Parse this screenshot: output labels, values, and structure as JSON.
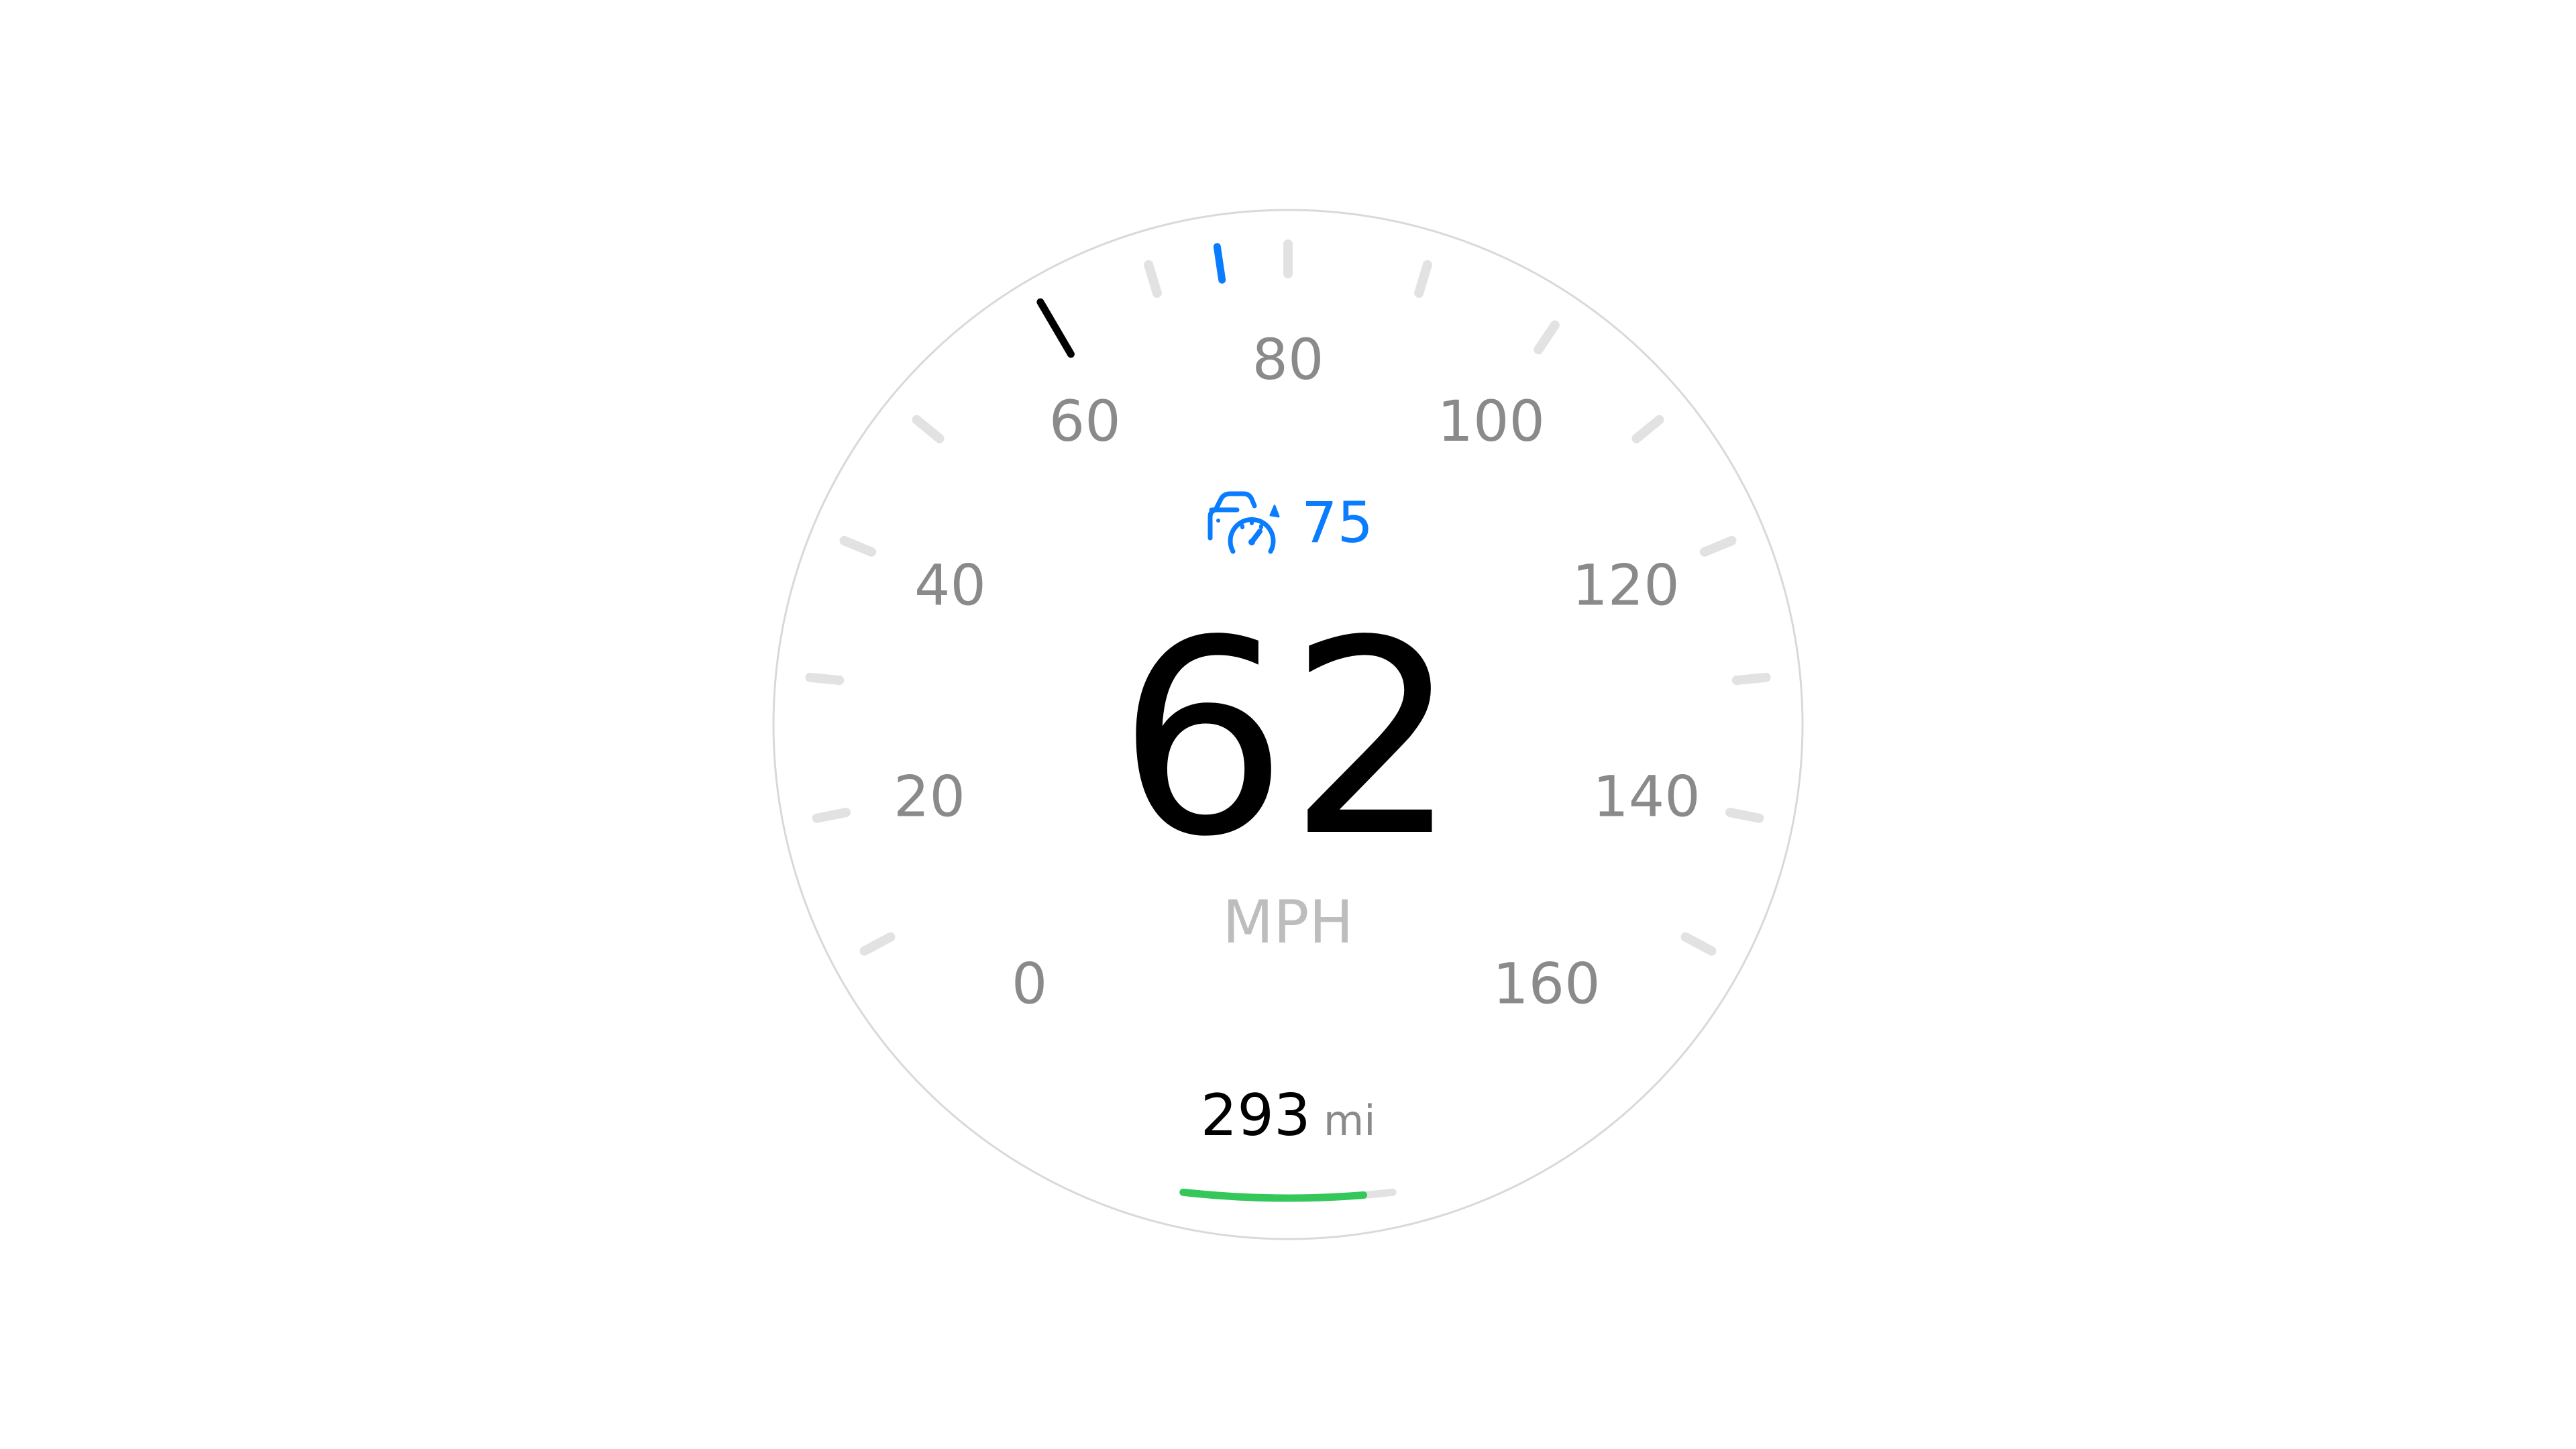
{
  "speedometer": {
    "speed": "62",
    "unit": "MPH",
    "min_speed": 0,
    "max_speed": 160,
    "scale_labels": [
      "0",
      "20",
      "40",
      "60",
      "80",
      "100",
      "120",
      "140",
      "160"
    ],
    "cruise": {
      "icon": "adaptive-cruise-control-icon",
      "set_speed": "75",
      "color": "#0A7CFF"
    },
    "range": {
      "value": "293",
      "unit": "mi",
      "level": 0.86,
      "color": "#34C759"
    },
    "colors": {
      "needle": "#000000",
      "tick": "#E2E2E2",
      "label": "#8A8A8A",
      "unit": "#BDBDBD",
      "ring": "#D9D9D9"
    }
  }
}
